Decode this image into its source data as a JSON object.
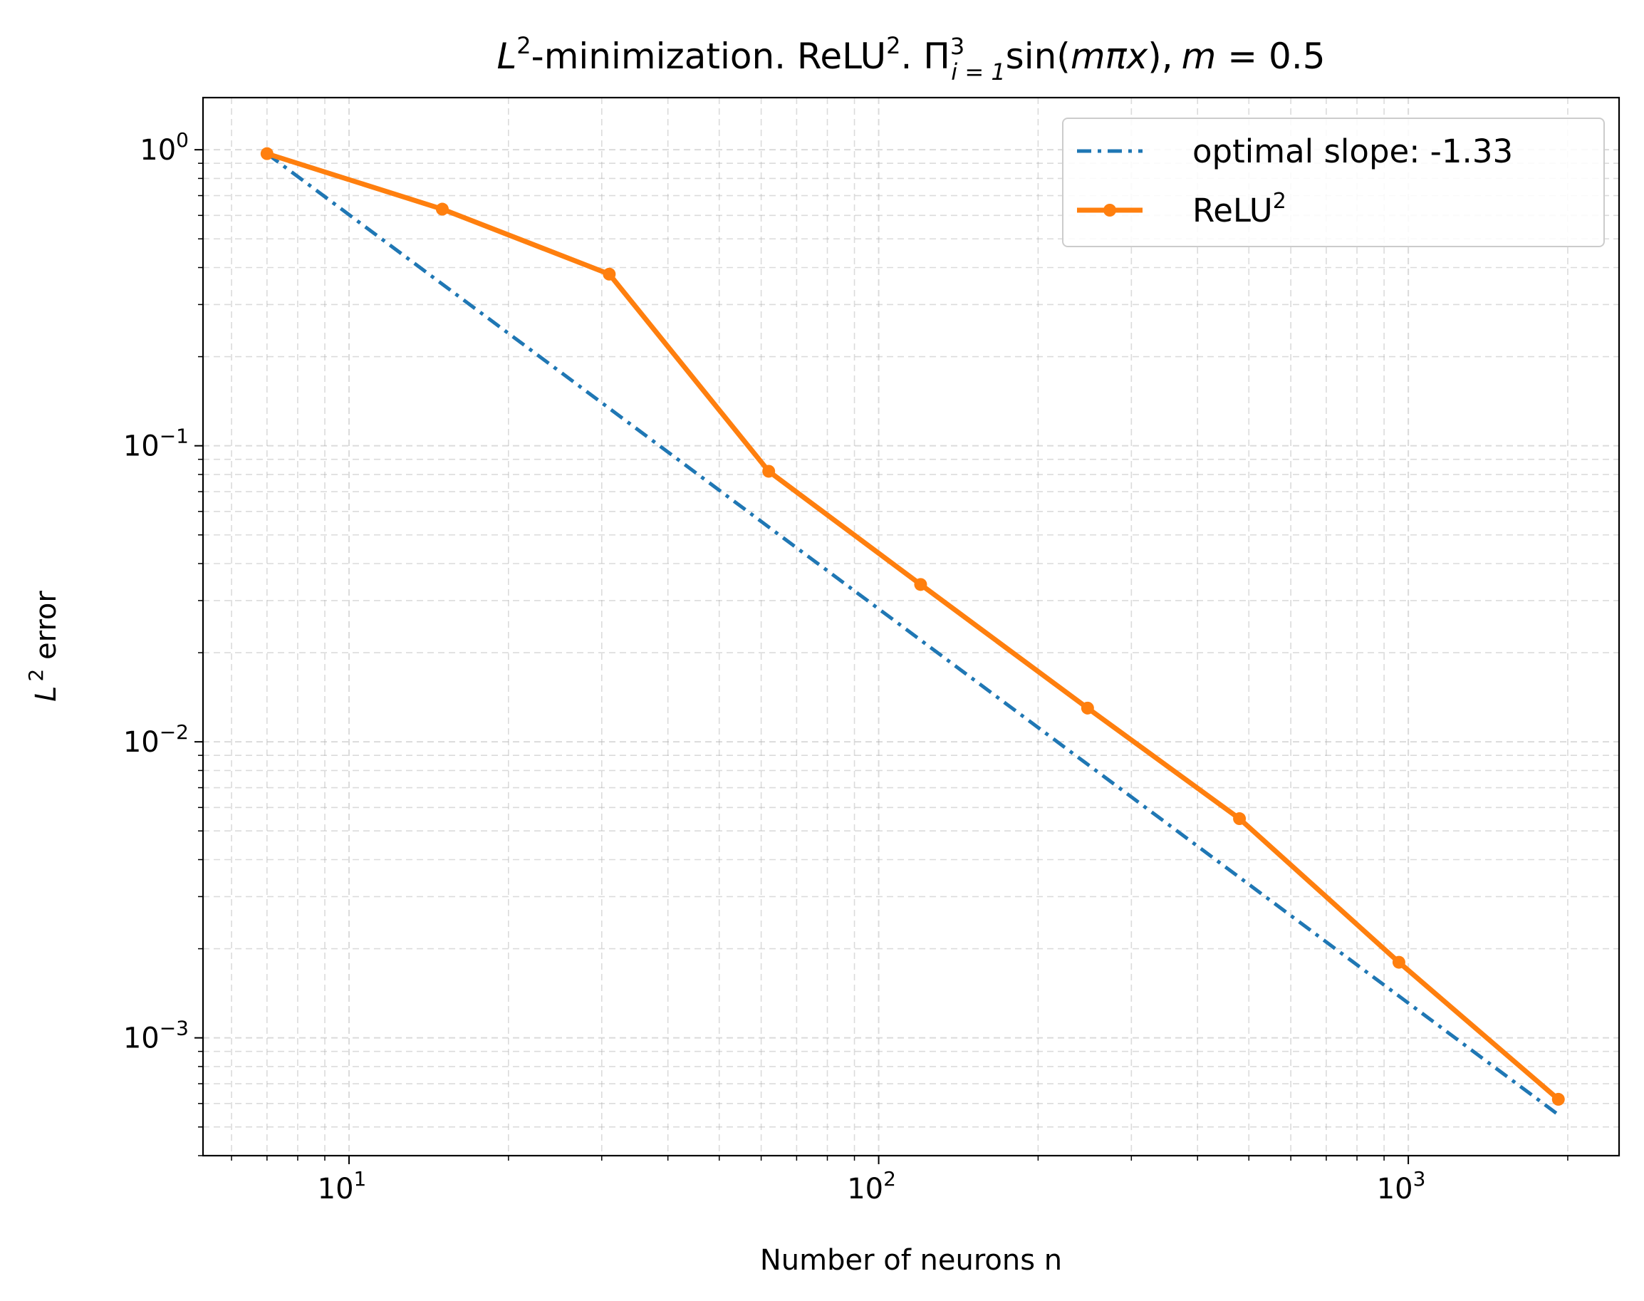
{
  "chart_data": {
    "type": "line",
    "scale": {
      "x": "log",
      "y": "log"
    },
    "title": {
      "prefix_symbol": "L",
      "prefix_sup": "2",
      "part1": "-minimization. ReLU",
      "part1_sup": "2",
      "part2": ". Π",
      "prod_sup": "3",
      "prod_sub": "i = 1",
      "func": "sin(",
      "func_arg": "mπx",
      "close": "),",
      "param_var": "m",
      "param_rest": " = 0.5"
    },
    "xlabel": "Number of neurons n",
    "ylabel": {
      "symbol": "L",
      "sup": "2",
      "text": " error"
    },
    "xlim": [
      5.3,
      2500
    ],
    "ylim": [
      0.0004,
      1.5
    ],
    "x_ticks": [
      {
        "value": 10,
        "base": "10",
        "exp": "1"
      },
      {
        "value": 100,
        "base": "10",
        "exp": "2"
      },
      {
        "value": 1000,
        "base": "10",
        "exp": "3"
      }
    ],
    "y_ticks": [
      {
        "value": 1,
        "base": "10",
        "exp": "0"
      },
      {
        "value": 0.1,
        "base": "10",
        "exp": "−1"
      },
      {
        "value": 0.01,
        "base": "10",
        "exp": "−2"
      },
      {
        "value": 0.001,
        "base": "10",
        "exp": "−3"
      }
    ],
    "grid": true,
    "legend_position": "top-right",
    "series": [
      {
        "name": "optimal slope: -1.33",
        "color": "#1f77b4",
        "style": "dashdot",
        "markers": false,
        "x": [
          7,
          1920
        ],
        "y": [
          0.97,
          0.00055
        ]
      },
      {
        "name": "ReLU",
        "name_sup": "2",
        "color": "#ff7f0e",
        "style": "solid",
        "markers": true,
        "x": [
          7,
          15,
          31,
          62,
          120,
          248,
          480,
          960,
          1920
        ],
        "y": [
          0.97,
          0.63,
          0.38,
          0.082,
          0.034,
          0.013,
          0.0055,
          0.0018,
          0.00062
        ]
      }
    ]
  }
}
